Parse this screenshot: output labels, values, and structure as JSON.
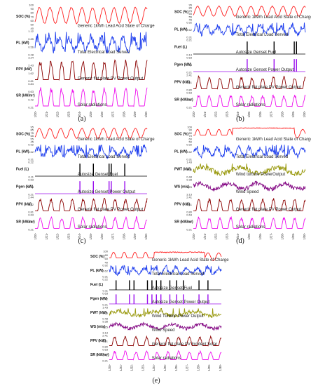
{
  "chart_data": [
    {
      "type": "line",
      "panel": "(a)",
      "x_ticks": [
        "1/20-",
        "1/21-",
        "1/22-",
        "1/23-",
        "1/24-",
        "1/25-",
        "1/26-",
        "1/27-",
        "1/28-",
        "1/29-",
        "1/30-"
      ],
      "rows": [
        {
          "ylabel": "SOC (%)",
          "ticks": [
            "100",
            "90",
            "80",
            "70",
            "60",
            "50",
            "40"
          ],
          "color": "#ff2020",
          "name": "Generic 1kWh Lead Acid State of Charge",
          "pattern": "soc"
        },
        {
          "ylabel": "PL (kW)",
          "ticks": [
            "1.12",
            "0.85",
            "0.56",
            "0.28"
          ],
          "color": "#2040ee",
          "name": "Total Electrical Load Served",
          "pattern": "load"
        },
        {
          "ylabel": "PPV (kW)",
          "ticks": [
            "3.24",
            "2.43",
            "1.62",
            "0.81"
          ],
          "color": "#8b0000",
          "name": "Generic flat plate PV Power Output",
          "pattern": "pv"
        },
        {
          "ylabel": "SR (kW/m²)",
          "ticks": [
            "0.84",
            "0.63",
            "0.42",
            "0.21"
          ],
          "color": "#ee10ee",
          "name": "Solar radiations",
          "pattern": "sr"
        }
      ]
    },
    {
      "type": "line",
      "panel": "(b)",
      "x_ticks": [
        "1/20-",
        "1/21-",
        "1/22-",
        "1/23-",
        "1/24-",
        "1/25-",
        "1/26-",
        "1/27-",
        "1/28-",
        "1/29-",
        "1/30-"
      ],
      "rows": [
        {
          "ylabel": "SOC (%)",
          "ticks": [
            "95",
            "85",
            "75",
            "65",
            "55",
            "45"
          ],
          "color": "#ff2020",
          "name": "Generic 1kWh Lead Acid State of Charge",
          "pattern": "soc"
        },
        {
          "ylabel": "PL (kW)",
          "ticks": [
            "0.92",
            "0.62",
            "0.31"
          ],
          "color": "#2040ee",
          "name": "Total Electrical Load Served",
          "pattern": "load"
        },
        {
          "ylabel": "Fuel (L)",
          "ticks": [
            "0.21",
            "0.13"
          ],
          "color": "#000000",
          "name": "Autosize Genset Fuel",
          "pattern": "fuelB"
        },
        {
          "ylabel": "Pgen (kW)",
          "ticks": [
            "0.63",
            "0.44",
            "0.21"
          ],
          "color": "#9b10ee",
          "name": "Autosize Genset Power Output",
          "pattern": "genB"
        },
        {
          "ylabel": "PPV (kW)",
          "ticks": [
            "2.41",
            "1.61",
            "0.80"
          ],
          "color": "#8b0000",
          "name": "Generic flat plate PV Power Output",
          "pattern": "pv"
        },
        {
          "ylabel": "SR (kW/m²)",
          "ticks": [
            "0.63",
            "0.42",
            "0.21"
          ],
          "color": "#ee10ee",
          "name": "Solar radiations",
          "pattern": "sr"
        }
      ]
    },
    {
      "type": "line",
      "panel": "(c)",
      "x_ticks": [
        "1/20-",
        "1/21-",
        "1/22-",
        "1/23-",
        "1/24-",
        "1/25-",
        "1/26-",
        "1/27-",
        "1/28-",
        "1/29-",
        "1/30-"
      ],
      "rows": [
        {
          "ylabel": "SOC (%)",
          "ticks": [
            "95",
            "85",
            "75",
            "65",
            "55",
            "45"
          ],
          "color": "#ff2020",
          "name": "Generic 1kWh Lead Acid State of Charge",
          "pattern": "soc"
        },
        {
          "ylabel": "PL (kW)",
          "ticks": [
            "0.92",
            "0.62",
            "0.31"
          ],
          "color": "#2040ee",
          "name": "Total Electrical Load Served",
          "pattern": "load"
        },
        {
          "ylabel": "Fuel (L)",
          "ticks": [
            "0.22",
            "0.11"
          ],
          "color": "#000000",
          "name": "Autosize Genset Fuel",
          "pattern": "fuelC"
        },
        {
          "ylabel": "Pgen (kW)",
          "ticks": [
            "0.63",
            "0.44",
            "0.21"
          ],
          "color": "#9b10ee",
          "name": "Autosize Genset Power Output",
          "pattern": "genC"
        },
        {
          "ylabel": "PPV (kW)",
          "ticks": [
            "2.44",
            "1.62",
            "0.81"
          ],
          "color": "#8b0000",
          "name": "Generic flat plate PV Power Output",
          "pattern": "pv"
        },
        {
          "ylabel": "SR (kW/m²)",
          "ticks": [
            "0.63",
            "0.42",
            "0.21"
          ],
          "color": "#ee10ee",
          "name": "Solar radiations",
          "pattern": "sr"
        }
      ]
    },
    {
      "type": "line",
      "panel": "(d)",
      "x_ticks": [
        "1/20-",
        "1/21-",
        "1/22-",
        "1/23-",
        "1/24-",
        "1/25-",
        "1/26-",
        "1/27-",
        "1/28-",
        "1/29-",
        "1/30-"
      ],
      "rows": [
        {
          "ylabel": "SOC (%)",
          "ticks": [
            "100",
            "90",
            "80",
            "70",
            "60",
            "50"
          ],
          "color": "#ff2020",
          "name": "Generic 1kWh Lead Acid State of Charge",
          "pattern": "socD"
        },
        {
          "ylabel": "PL (kW)",
          "ticks": [
            "0.92",
            "0.62",
            "0.31"
          ],
          "color": "#2040ee",
          "name": "Total Electrical Load Served",
          "pattern": "load"
        },
        {
          "ylabel": "PWT (kW)",
          "ticks": [
            "1.43",
            "0.95",
            "0.48"
          ],
          "color": "#9a9a10",
          "name": "Wind turbine PowerOutput",
          "pattern": "wind"
        },
        {
          "ylabel": "WS (m/s)",
          "ticks": [
            "9.38",
            "6.25",
            "3.13"
          ],
          "color": "#800080",
          "name": "Wind Speed",
          "pattern": "ws"
        },
        {
          "ylabel": "PPV (kW)",
          "ticks": [
            "2.41",
            "1.61",
            "0.80"
          ],
          "color": "#8b0000",
          "name": "Generic flat plate PV Power Output",
          "pattern": "pv"
        },
        {
          "ylabel": "SR (kW/m²)",
          "ticks": [
            "0.63",
            "0.42",
            "0.21"
          ],
          "color": "#ee10ee",
          "name": "Solar radiations",
          "pattern": "sr"
        }
      ]
    },
    {
      "type": "line",
      "panel": "(e)",
      "x_ticks": [
        "1/20-",
        "1/21-",
        "1/22-",
        "1/23-",
        "1/24-",
        "1/25-",
        "1/26-",
        "1/27-",
        "1/28-",
        "1/29-",
        "1/30-"
      ],
      "rows": [
        {
          "ylabel": "SOC (%)",
          "ticks": [
            "100",
            "80",
            "60",
            "40"
          ],
          "color": "#ff2020",
          "name": "Generic 1kWh Lead Acid State of Charge",
          "pattern": "socE"
        },
        {
          "ylabel": "PL (kW)",
          "ticks": [
            "0.92",
            "0.62",
            "0.31"
          ],
          "color": "#2040ee",
          "name": "Total Electrical Load Served",
          "pattern": "load"
        },
        {
          "ylabel": "Fuel (L)",
          "ticks": [
            "0.22",
            "0.11"
          ],
          "color": "#000000",
          "name": "Autosize Genset Fuel",
          "pattern": "fuelE"
        },
        {
          "ylabel": "Pgen (kW)",
          "ticks": [
            "0.63",
            "0.42",
            "0.21"
          ],
          "color": "#9b10ee",
          "name": "Autosize Genset Power Output",
          "pattern": "genE"
        },
        {
          "ylabel": "PWT (kW)",
          "ticks": [
            "1.43",
            "0.95",
            "0.48"
          ],
          "color": "#9a9a10",
          "name": "Wind Turbine Power Output",
          "pattern": "wind"
        },
        {
          "ylabel": "WS (m/s)",
          "ticks": [
            "9.38",
            "6.25",
            "3.13"
          ],
          "color": "#800080",
          "name": "Wind Speed",
          "pattern": "ws"
        },
        {
          "ylabel": "PPV (kW)",
          "ticks": [
            "2.41",
            "1.61",
            "0.80"
          ],
          "color": "#8b0000",
          "name": "Generic flat plate PV Incident Solar",
          "pattern": "pv"
        },
        {
          "ylabel": "SR (kW/m²)",
          "ticks": [
            "0.63",
            "0.42",
            "0.21"
          ],
          "color": "#ee10ee",
          "name": "Solar radiations",
          "pattern": "sr"
        }
      ]
    }
  ]
}
